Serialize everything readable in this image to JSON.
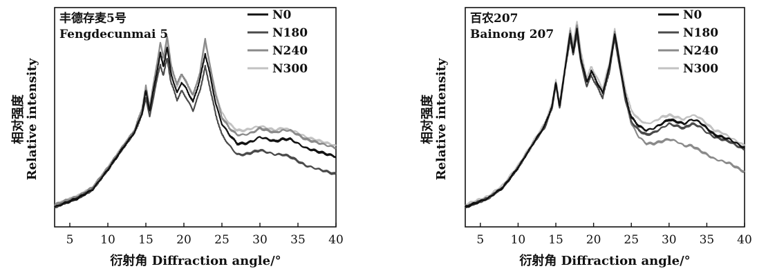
{
  "chart_data": [
    {
      "type": "line",
      "title_cn": "丰德存麦5号",
      "title_en": "Fengdecunmai 5",
      "xlabel": "衍射角 Diffraction angle/°",
      "ylabel_cn": "相对强度",
      "ylabel_en": "Relative intensity",
      "xlim": [
        3,
        40
      ],
      "ylim": [
        0,
        1
      ],
      "xticks": [
        "5",
        "10",
        "15",
        "20",
        "25",
        "30",
        "35",
        "40"
      ],
      "legend_position": "top-right",
      "series": [
        {
          "name": "N0",
          "color": "#111111",
          "x": [
            3,
            6,
            8,
            10,
            12,
            13.5,
            14.5,
            15,
            15.5,
            16.2,
            16.9,
            17.3,
            17.8,
            18.3,
            19.1,
            19.7,
            20.3,
            21.2,
            22.1,
            22.8,
            23.4,
            24.2,
            25,
            26,
            27,
            28,
            29,
            30,
            31,
            32,
            33,
            34,
            35,
            36,
            37,
            38,
            39,
            40
          ],
          "y": [
            0.09,
            0.13,
            0.17,
            0.26,
            0.36,
            0.43,
            0.52,
            0.62,
            0.53,
            0.66,
            0.79,
            0.73,
            0.82,
            0.7,
            0.61,
            0.66,
            0.63,
            0.57,
            0.67,
            0.79,
            0.7,
            0.56,
            0.47,
            0.42,
            0.38,
            0.38,
            0.39,
            0.41,
            0.4,
            0.39,
            0.4,
            0.4,
            0.38,
            0.36,
            0.35,
            0.34,
            0.33,
            0.32
          ]
        },
        {
          "name": "N180",
          "color": "#4a4a4a",
          "x": [
            3,
            6,
            8,
            10,
            12,
            13.5,
            14.5,
            15,
            15.5,
            16.2,
            16.9,
            17.3,
            17.8,
            18.3,
            19.1,
            19.7,
            20.3,
            21.2,
            22.1,
            22.8,
            23.4,
            24.2,
            25,
            26,
            27,
            28,
            29,
            30,
            31,
            32,
            33,
            34,
            35,
            36,
            37,
            38,
            39,
            40
          ],
          "y": [
            0.09,
            0.13,
            0.17,
            0.26,
            0.36,
            0.43,
            0.51,
            0.59,
            0.5,
            0.63,
            0.74,
            0.69,
            0.77,
            0.66,
            0.58,
            0.62,
            0.59,
            0.53,
            0.62,
            0.73,
            0.64,
            0.51,
            0.42,
            0.37,
            0.33,
            0.33,
            0.34,
            0.35,
            0.34,
            0.33,
            0.33,
            0.32,
            0.3,
            0.28,
            0.27,
            0.26,
            0.25,
            0.24
          ]
        },
        {
          "name": "N240",
          "color": "#8a8a8a",
          "x": [
            3,
            6,
            8,
            10,
            12,
            13.5,
            14.5,
            15,
            15.5,
            16.2,
            16.9,
            17.3,
            17.8,
            18.3,
            19.1,
            19.7,
            20.3,
            21.2,
            22.1,
            22.8,
            23.4,
            24.2,
            25,
            26,
            27,
            28,
            29,
            30,
            31,
            32,
            33,
            34,
            35,
            36,
            37,
            38,
            39,
            40
          ],
          "y": [
            0.1,
            0.14,
            0.18,
            0.27,
            0.37,
            0.44,
            0.54,
            0.64,
            0.55,
            0.69,
            0.84,
            0.77,
            0.87,
            0.74,
            0.65,
            0.7,
            0.66,
            0.6,
            0.7,
            0.86,
            0.74,
            0.6,
            0.5,
            0.45,
            0.42,
            0.42,
            0.43,
            0.45,
            0.44,
            0.43,
            0.44,
            0.44,
            0.42,
            0.4,
            0.39,
            0.38,
            0.37,
            0.36
          ]
        },
        {
          "name": "N300",
          "color": "#c2c2c2",
          "x": [
            3,
            6,
            8,
            10,
            12,
            13.5,
            14.5,
            15,
            15.5,
            16.2,
            16.9,
            17.3,
            17.8,
            18.3,
            19.1,
            19.7,
            20.3,
            21.2,
            22.1,
            22.8,
            23.4,
            24.2,
            25,
            26,
            27,
            28,
            29,
            30,
            31,
            32,
            33,
            34,
            35,
            36,
            37,
            38,
            39,
            40
          ],
          "y": [
            0.1,
            0.14,
            0.18,
            0.27,
            0.37,
            0.44,
            0.53,
            0.62,
            0.54,
            0.67,
            0.8,
            0.75,
            0.84,
            0.72,
            0.64,
            0.69,
            0.66,
            0.6,
            0.7,
            0.84,
            0.74,
            0.61,
            0.52,
            0.47,
            0.44,
            0.44,
            0.45,
            0.46,
            0.45,
            0.44,
            0.45,
            0.44,
            0.43,
            0.41,
            0.4,
            0.39,
            0.38,
            0.37
          ]
        }
      ]
    },
    {
      "type": "line",
      "title_cn": "百农207",
      "title_en": "Bainong 207",
      "xlabel": "衍射角 Diffraction angle/°",
      "ylabel_cn": "相对强度",
      "ylabel_en": "Relative intensity",
      "xlim": [
        3,
        40
      ],
      "ylim": [
        0,
        1
      ],
      "xticks": [
        "5",
        "10",
        "15",
        "20",
        "25",
        "30",
        "35",
        "40"
      ],
      "legend_position": "top-right",
      "series": [
        {
          "name": "N0",
          "color": "#111111",
          "x": [
            3,
            6,
            8,
            10,
            12,
            13.5,
            14.5,
            15,
            15.5,
            16.2,
            16.9,
            17.3,
            17.8,
            18.3,
            19.1,
            19.7,
            20.3,
            21.2,
            22.1,
            22.8,
            23.4,
            24.2,
            25,
            26,
            27,
            28,
            29,
            30,
            31,
            32,
            33,
            34,
            35,
            36,
            37,
            38,
            39,
            40
          ],
          "y": [
            0.09,
            0.13,
            0.18,
            0.27,
            0.38,
            0.46,
            0.55,
            0.66,
            0.55,
            0.72,
            0.88,
            0.8,
            0.9,
            0.77,
            0.66,
            0.71,
            0.67,
            0.61,
            0.73,
            0.88,
            0.76,
            0.6,
            0.5,
            0.46,
            0.44,
            0.45,
            0.47,
            0.49,
            0.48,
            0.47,
            0.49,
            0.48,
            0.45,
            0.42,
            0.41,
            0.4,
            0.38,
            0.36
          ]
        },
        {
          "name": "N180",
          "color": "#4a4a4a",
          "x": [
            3,
            6,
            8,
            10,
            12,
            13.5,
            14.5,
            15,
            15.5,
            16.2,
            16.9,
            17.3,
            17.8,
            18.3,
            19.1,
            19.7,
            20.3,
            21.2,
            22.1,
            22.8,
            23.4,
            24.2,
            25,
            26,
            27,
            28,
            29,
            30,
            31,
            32,
            33,
            34,
            35,
            36,
            37,
            38,
            39,
            40
          ],
          "y": [
            0.09,
            0.13,
            0.18,
            0.27,
            0.38,
            0.45,
            0.54,
            0.65,
            0.54,
            0.71,
            0.86,
            0.78,
            0.88,
            0.75,
            0.64,
            0.69,
            0.65,
            0.59,
            0.71,
            0.86,
            0.74,
            0.58,
            0.48,
            0.44,
            0.42,
            0.43,
            0.45,
            0.47,
            0.46,
            0.45,
            0.47,
            0.46,
            0.43,
            0.41,
            0.4,
            0.39,
            0.37,
            0.35
          ]
        },
        {
          "name": "N240",
          "color": "#8a8a8a",
          "x": [
            3,
            6,
            8,
            10,
            12,
            13.5,
            14.5,
            15,
            15.5,
            16.2,
            16.9,
            17.3,
            17.8,
            18.3,
            19.1,
            19.7,
            20.3,
            21.2,
            22.1,
            22.8,
            23.4,
            24.2,
            25,
            26,
            27,
            28,
            29,
            30,
            31,
            32,
            33,
            34,
            35,
            36,
            37,
            38,
            39,
            40
          ],
          "y": [
            0.09,
            0.13,
            0.18,
            0.27,
            0.38,
            0.46,
            0.55,
            0.66,
            0.55,
            0.72,
            0.89,
            0.81,
            0.92,
            0.78,
            0.66,
            0.71,
            0.67,
            0.61,
            0.73,
            0.89,
            0.76,
            0.59,
            0.47,
            0.41,
            0.38,
            0.38,
            0.39,
            0.4,
            0.39,
            0.37,
            0.37,
            0.35,
            0.33,
            0.31,
            0.3,
            0.29,
            0.27,
            0.25
          ]
        },
        {
          "name": "N300",
          "color": "#c2c2c2",
          "x": [
            3,
            6,
            8,
            10,
            12,
            13.5,
            14.5,
            15,
            15.5,
            16.2,
            16.9,
            17.3,
            17.8,
            18.3,
            19.1,
            19.7,
            20.3,
            21.2,
            22.1,
            22.8,
            23.4,
            24.2,
            25,
            26,
            27,
            28,
            29,
            30,
            31,
            32,
            33,
            34,
            35,
            36,
            37,
            38,
            39,
            40
          ],
          "y": [
            0.1,
            0.14,
            0.19,
            0.28,
            0.39,
            0.47,
            0.56,
            0.67,
            0.56,
            0.73,
            0.91,
            0.83,
            0.94,
            0.8,
            0.68,
            0.73,
            0.69,
            0.63,
            0.75,
            0.9,
            0.78,
            0.63,
            0.53,
            0.49,
            0.47,
            0.48,
            0.5,
            0.51,
            0.5,
            0.49,
            0.51,
            0.5,
            0.47,
            0.44,
            0.43,
            0.41,
            0.39,
            0.37
          ]
        }
      ]
    }
  ]
}
